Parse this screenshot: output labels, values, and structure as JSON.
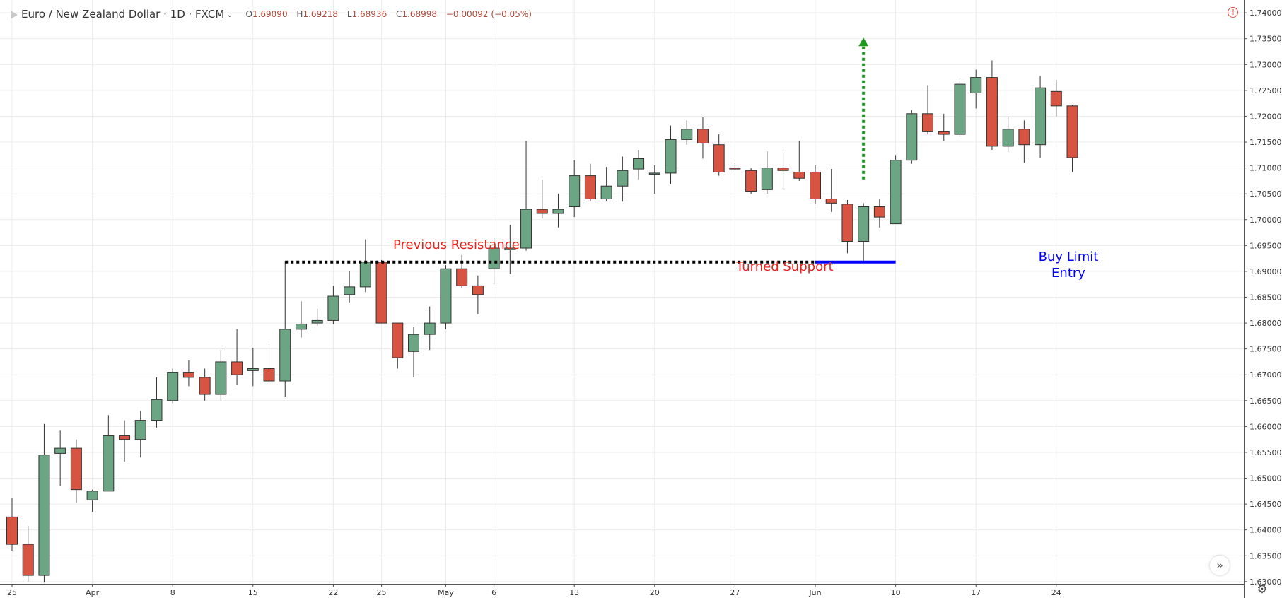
{
  "header": {
    "symbol": "Euro / New Zealand Dollar · 1D · FXCM",
    "o_label": "O",
    "o": "1.69090",
    "h_label": "H",
    "h": "1.69218",
    "l_label": "L",
    "l": "1.68936",
    "c_label": "C",
    "c": "1.68998",
    "change": "−0.00092 (−0.05%)"
  },
  "icons": {
    "symbol_icon": "symbol-icon",
    "caret": "chevron-down-icon",
    "alert": "alert-icon",
    "scroll": "fast-forward-icon",
    "settings": "gear-icon"
  },
  "colors": {
    "up": "#6ba583",
    "down": "#d75442",
    "resistance_text": "#e8231e",
    "support_line": "#000000",
    "entry_line": "#0000ff",
    "entry_text": "#0000ff",
    "arrow": "#1f9a1f"
  },
  "annotations": {
    "previous_resistance": "Previous Resistance",
    "turned_support": "Turned Support",
    "buy_limit": "Buy Limit",
    "entry": "Entry"
  },
  "chart_data": {
    "type": "candlestick",
    "y_axis": {
      "min": 1.6295,
      "max": 1.7405,
      "ticks": [
        "1.74000",
        "1.73500",
        "1.73000",
        "1.72500",
        "1.72000",
        "1.71500",
        "1.71000",
        "1.70500",
        "1.70000",
        "1.69500",
        "1.69000",
        "1.68500",
        "1.68000",
        "1.67500",
        "1.67000",
        "1.66500",
        "1.66000",
        "1.65500",
        "1.65000",
        "1.64500",
        "1.64000",
        "1.63500",
        "1.63000"
      ],
      "position": "right"
    },
    "x_axis": {
      "ticks": [
        {
          "label": "25",
          "index": 0
        },
        {
          "label": "Apr",
          "index": 5
        },
        {
          "label": "8",
          "index": 10
        },
        {
          "label": "15",
          "index": 15
        },
        {
          "label": "22",
          "index": 20
        },
        {
          "label": "25",
          "index": 23
        },
        {
          "label": "May",
          "index": 27
        },
        {
          "label": "6",
          "index": 30
        },
        {
          "label": "13",
          "index": 35
        },
        {
          "label": "20",
          "index": 40
        },
        {
          "label": "27",
          "index": 45
        },
        {
          "label": "Jun",
          "index": 50
        },
        {
          "label": "10",
          "index": 55
        },
        {
          "label": "17",
          "index": 60
        },
        {
          "label": "24",
          "index": 65
        }
      ]
    },
    "grid": true,
    "candles": [
      {
        "o": 1.6425,
        "h": 1.6462,
        "l": 1.636,
        "c": 1.6372
      },
      {
        "o": 1.6372,
        "h": 1.6408,
        "l": 1.63,
        "c": 1.6312
      },
      {
        "o": 1.6312,
        "h": 1.6605,
        "l": 1.6298,
        "c": 1.6545
      },
      {
        "o": 1.6548,
        "h": 1.6592,
        "l": 1.6485,
        "c": 1.6558
      },
      {
        "o": 1.6558,
        "h": 1.6575,
        "l": 1.6452,
        "c": 1.6478
      },
      {
        "o": 1.6458,
        "h": 1.6478,
        "l": 1.6435,
        "c": 1.6475
      },
      {
        "o": 1.6475,
        "h": 1.6622,
        "l": 1.6475,
        "c": 1.6582
      },
      {
        "o": 1.6582,
        "h": 1.6612,
        "l": 1.6532,
        "c": 1.6575
      },
      {
        "o": 1.6575,
        "h": 1.663,
        "l": 1.654,
        "c": 1.6612
      },
      {
        "o": 1.6612,
        "h": 1.6695,
        "l": 1.6598,
        "c": 1.6652
      },
      {
        "o": 1.665,
        "h": 1.6712,
        "l": 1.6645,
        "c": 1.6705
      },
      {
        "o": 1.6705,
        "h": 1.6728,
        "l": 1.6678,
        "c": 1.6695
      },
      {
        "o": 1.6695,
        "h": 1.6712,
        "l": 1.665,
        "c": 1.6662
      },
      {
        "o": 1.6662,
        "h": 1.6748,
        "l": 1.665,
        "c": 1.6725
      },
      {
        "o": 1.6725,
        "h": 1.6788,
        "l": 1.668,
        "c": 1.67
      },
      {
        "o": 1.6708,
        "h": 1.6752,
        "l": 1.6678,
        "c": 1.6712
      },
      {
        "o": 1.6712,
        "h": 1.6758,
        "l": 1.6682,
        "c": 1.6688
      },
      {
        "o": 1.6688,
        "h": 1.692,
        "l": 1.6658,
        "c": 1.6788
      },
      {
        "o": 1.6788,
        "h": 1.6842,
        "l": 1.6772,
        "c": 1.6798
      },
      {
        "o": 1.68,
        "h": 1.6828,
        "l": 1.6795,
        "c": 1.6805
      },
      {
        "o": 1.6805,
        "h": 1.6872,
        "l": 1.6798,
        "c": 1.6852
      },
      {
        "o": 1.6855,
        "h": 1.69,
        "l": 1.684,
        "c": 1.687
      },
      {
        "o": 1.687,
        "h": 1.6962,
        "l": 1.686,
        "c": 1.6918
      },
      {
        "o": 1.6918,
        "h": 1.6922,
        "l": 1.68,
        "c": 1.68
      },
      {
        "o": 1.68,
        "h": 1.68,
        "l": 1.6712,
        "c": 1.6733
      },
      {
        "o": 1.6745,
        "h": 1.6792,
        "l": 1.6695,
        "c": 1.6778
      },
      {
        "o": 1.6778,
        "h": 1.6832,
        "l": 1.6748,
        "c": 1.68
      },
      {
        "o": 1.68,
        "h": 1.6912,
        "l": 1.6788,
        "c": 1.6905
      },
      {
        "o": 1.6905,
        "h": 1.6932,
        "l": 1.6868,
        "c": 1.6872
      },
      {
        "o": 1.6872,
        "h": 1.6892,
        "l": 1.6818,
        "c": 1.6855
      },
      {
        "o": 1.6905,
        "h": 1.6965,
        "l": 1.6875,
        "c": 1.6945
      },
      {
        "o": 1.6942,
        "h": 1.699,
        "l": 1.6895,
        "c": 1.6945
      },
      {
        "o": 1.6945,
        "h": 1.7152,
        "l": 1.694,
        "c": 1.702
      },
      {
        "o": 1.702,
        "h": 1.7078,
        "l": 1.7002,
        "c": 1.7012
      },
      {
        "o": 1.7012,
        "h": 1.705,
        "l": 1.6985,
        "c": 1.702
      },
      {
        "o": 1.7025,
        "h": 1.7115,
        "l": 1.7005,
        "c": 1.7085
      },
      {
        "o": 1.7085,
        "h": 1.7108,
        "l": 1.7035,
        "c": 1.704
      },
      {
        "o": 1.704,
        "h": 1.7102,
        "l": 1.7035,
        "c": 1.7065
      },
      {
        "o": 1.7065,
        "h": 1.7122,
        "l": 1.7035,
        "c": 1.7095
      },
      {
        "o": 1.7098,
        "h": 1.7135,
        "l": 1.7078,
        "c": 1.7118
      },
      {
        "o": 1.709,
        "h": 1.7105,
        "l": 1.705,
        "c": 1.709
      },
      {
        "o": 1.709,
        "h": 1.7182,
        "l": 1.7068,
        "c": 1.7155
      },
      {
        "o": 1.7155,
        "h": 1.7192,
        "l": 1.7145,
        "c": 1.7175
      },
      {
        "o": 1.7175,
        "h": 1.7198,
        "l": 1.7118,
        "c": 1.7148
      },
      {
        "o": 1.7145,
        "h": 1.7165,
        "l": 1.7085,
        "c": 1.7092
      },
      {
        "o": 1.71,
        "h": 1.711,
        "l": 1.7095,
        "c": 1.7098
      },
      {
        "o": 1.7095,
        "h": 1.71,
        "l": 1.705,
        "c": 1.7055
      },
      {
        "o": 1.7058,
        "h": 1.7132,
        "l": 1.705,
        "c": 1.71
      },
      {
        "o": 1.71,
        "h": 1.713,
        "l": 1.706,
        "c": 1.7095
      },
      {
        "o": 1.7092,
        "h": 1.7152,
        "l": 1.7075,
        "c": 1.708
      },
      {
        "o": 1.7092,
        "h": 1.7105,
        "l": 1.703,
        "c": 1.704
      },
      {
        "o": 1.704,
        "h": 1.7098,
        "l": 1.7015,
        "c": 1.7032
      },
      {
        "o": 1.703,
        "h": 1.7038,
        "l": 1.6935,
        "c": 1.6958
      },
      {
        "o": 1.6958,
        "h": 1.7032,
        "l": 1.692,
        "c": 1.7025
      },
      {
        "o": 1.7025,
        "h": 1.704,
        "l": 1.6985,
        "c": 1.7005
      },
      {
        "o": 1.6992,
        "h": 1.7125,
        "l": 1.6992,
        "c": 1.7115
      },
      {
        "o": 1.7115,
        "h": 1.7212,
        "l": 1.7108,
        "c": 1.7205
      },
      {
        "o": 1.7205,
        "h": 1.726,
        "l": 1.7165,
        "c": 1.717
      },
      {
        "o": 1.717,
        "h": 1.7205,
        "l": 1.7152,
        "c": 1.7165
      },
      {
        "o": 1.7165,
        "h": 1.7272,
        "l": 1.716,
        "c": 1.7262
      },
      {
        "o": 1.7245,
        "h": 1.729,
        "l": 1.7215,
        "c": 1.7275
      },
      {
        "o": 1.7275,
        "h": 1.7308,
        "l": 1.7135,
        "c": 1.7142
      },
      {
        "o": 1.7142,
        "h": 1.72,
        "l": 1.713,
        "c": 1.7175
      },
      {
        "o": 1.7175,
        "h": 1.7192,
        "l": 1.711,
        "c": 1.7145
      },
      {
        "o": 1.7145,
        "h": 1.7278,
        "l": 1.712,
        "c": 1.7255
      },
      {
        "o": 1.7248,
        "h": 1.727,
        "l": 1.72,
        "c": 1.722
      },
      {
        "o": 1.722,
        "h": 1.7222,
        "l": 1.7092,
        "c": 1.712
      }
    ],
    "support_level": 1.6918,
    "support_from_index": 17,
    "entry_level": 1.6918,
    "entry_from_index": 50,
    "entry_to_index": 55,
    "arrow_index": 53,
    "arrow_from": 1.7078,
    "arrow_to": 1.7352
  }
}
